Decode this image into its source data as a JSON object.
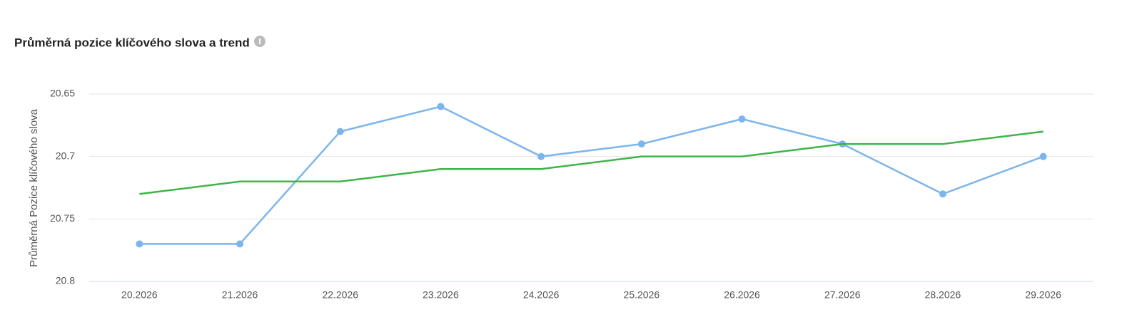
{
  "title": "Průměrná pozice klíčového slova a trend",
  "chart_data": {
    "type": "line",
    "ylabel": "Průměrná Pozice klíčového slova",
    "categories": [
      "20.2026",
      "21.2026",
      "22.2026",
      "23.2026",
      "24.2026",
      "25.2026",
      "26.2026",
      "27.2026",
      "28.2026",
      "29.2026"
    ],
    "series": [
      {
        "color": "#7cb5ec",
        "markers": true,
        "values": [
          20.77,
          20.77,
          20.68,
          20.66,
          20.7,
          20.69,
          20.67,
          20.69,
          20.73,
          20.7
        ]
      },
      {
        "color": "#3db54a",
        "markers": false,
        "values": [
          20.73,
          20.72,
          20.72,
          20.71,
          20.71,
          20.7,
          20.7,
          20.69,
          20.69,
          20.68
        ]
      }
    ],
    "ylim": [
      20.8,
      20.65
    ],
    "y_reversed": true,
    "yticks": [
      20.65,
      20.7,
      20.75,
      20.8
    ],
    "grid": true
  }
}
